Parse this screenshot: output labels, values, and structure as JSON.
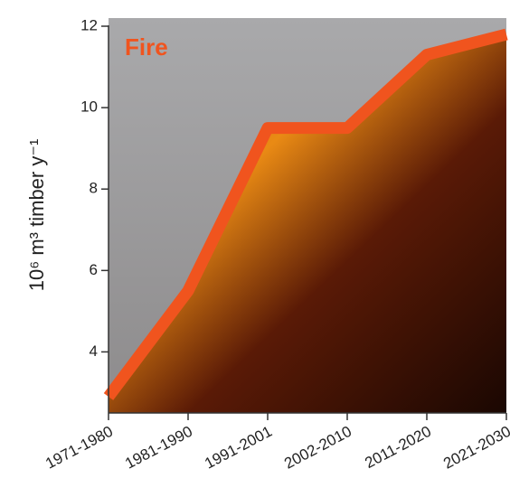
{
  "chart_data": {
    "type": "line",
    "y_label": "10⁶ m³ timber y⁻¹",
    "annotation": "Fire",
    "categories": [
      "1971-1980",
      "1981-1990",
      "1991-2001",
      "2002-2010",
      "2011-2020",
      "2021-2030"
    ],
    "series": [
      {
        "name": "Fire",
        "color": "#f0541e",
        "values": [
          2.9,
          5.5,
          9.5,
          9.5,
          11.3,
          11.8
        ]
      }
    ],
    "ylim": [
      2.5,
      12.2
    ],
    "yticks": [
      4,
      6,
      8,
      10,
      12
    ]
  }
}
